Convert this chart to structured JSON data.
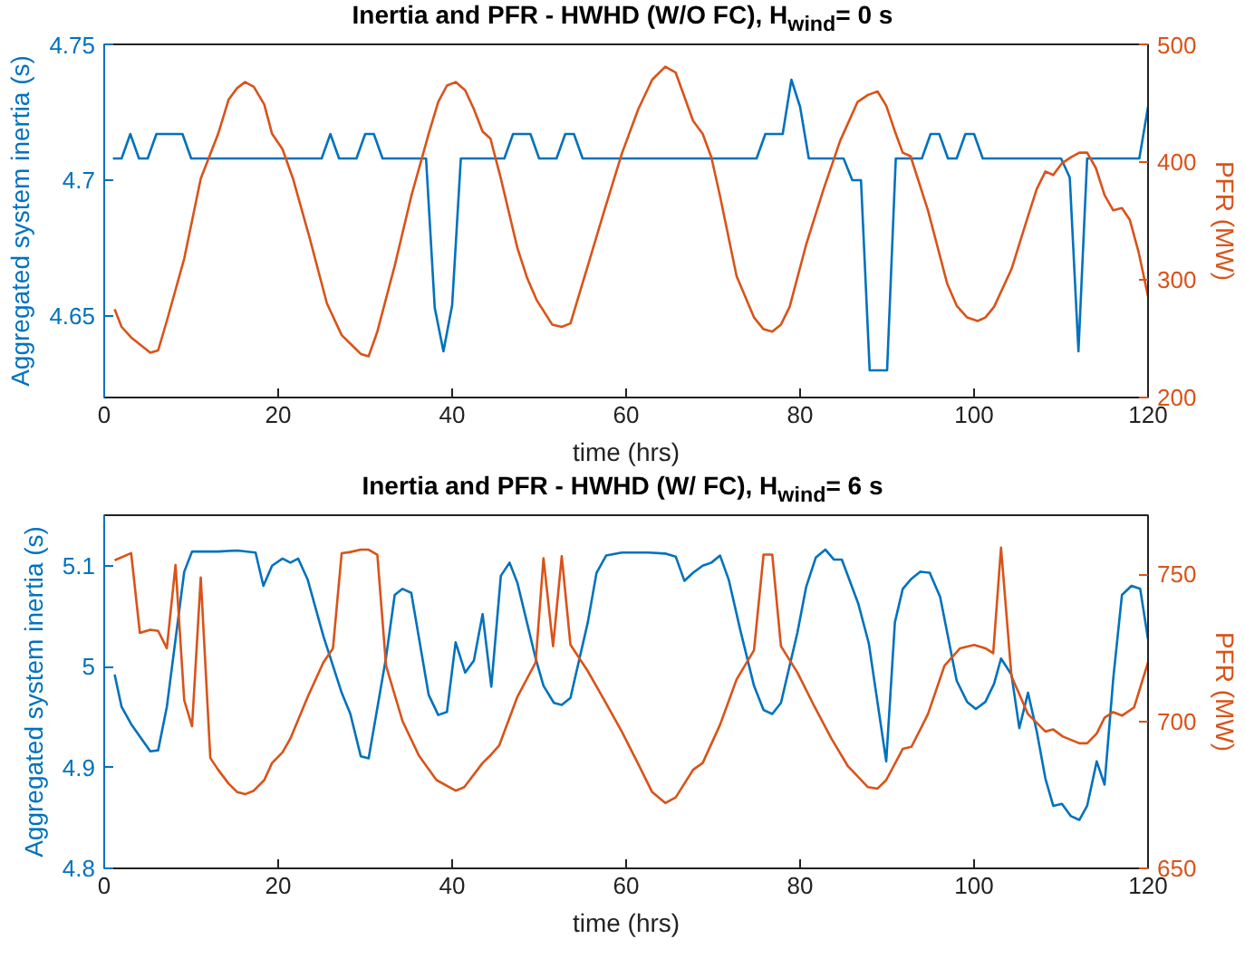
{
  "chart_data": [
    {
      "type": "line",
      "title": "Inertia and PFR - HWHD (W/O FC), H$_{wind}$= 0 s",
      "xlabel": "time (hrs)",
      "ylabel": "Aggregated system inertia (s)",
      "y2label": "PFR (MW)",
      "xlim": [
        0,
        120
      ],
      "xticks": [
        0,
        20,
        40,
        60,
        80,
        100,
        120
      ],
      "ylim": [
        4.62,
        4.75
      ],
      "yticks": [
        4.65,
        4.7,
        4.75
      ],
      "y2lim": [
        200,
        500
      ],
      "y2ticks": [
        200,
        300,
        400,
        500
      ],
      "grid": false,
      "series": [
        {
          "color": "#0072bd",
          "x": [
            1,
            2,
            3,
            4,
            5,
            6,
            7,
            8,
            9,
            10,
            25,
            26,
            27,
            29,
            30,
            31,
            32,
            37,
            38,
            39,
            40,
            41,
            46,
            47,
            49,
            50,
            52,
            53,
            54,
            55,
            75,
            76,
            78,
            79,
            80,
            81,
            85,
            86,
            87,
            88,
            90,
            91,
            94,
            95,
            96,
            97,
            98,
            99,
            100,
            101,
            110,
            111,
            112,
            113,
            119,
            120
          ],
          "values": [
            4.708,
            4.708,
            4.717,
            4.708,
            4.708,
            4.717,
            4.717,
            4.717,
            4.717,
            4.708,
            4.708,
            4.717,
            4.708,
            4.708,
            4.717,
            4.717,
            4.708,
            4.708,
            4.653,
            4.637,
            4.654,
            4.708,
            4.708,
            4.717,
            4.717,
            4.708,
            4.708,
            4.717,
            4.717,
            4.708,
            4.708,
            4.717,
            4.717,
            4.737,
            4.727,
            4.708,
            4.708,
            4.7,
            4.7,
            4.63,
            4.63,
            4.708,
            4.708,
            4.717,
            4.717,
            4.708,
            4.708,
            4.717,
            4.717,
            4.708,
            4.708,
            4.701,
            4.637,
            4.708,
            4.708,
            4.727
          ]
        },
        {
          "color": "#d95319",
          "axis": "y2",
          "x": [
            1.2,
            2,
            3.1,
            5.3,
            6.2,
            7.2,
            9.2,
            11.1,
            13.1,
            14.3,
            15.3,
            16.2,
            17.2,
            18.4,
            19.3,
            20.5,
            21.7,
            23.6,
            25.6,
            27.3,
            28.4,
            29.5,
            30.4,
            31.4,
            33.4,
            35.3,
            37.3,
            38.4,
            39.4,
            40.4,
            41.5,
            42.5,
            43.5,
            44.4,
            45.6,
            47.5,
            48.6,
            49.7,
            51.5,
            52.6,
            53.6,
            55.6,
            57.5,
            59.5,
            61.4,
            63,
            64.5,
            65.7,
            67.7,
            68.8,
            69.8,
            70.8,
            72.7,
            74.7,
            75.8,
            76.8,
            77.8,
            78.8,
            80.7,
            82.7,
            84.6,
            86.6,
            87.8,
            88.9,
            89.9,
            91,
            91.8,
            92.7,
            94.7,
            96.9,
            98,
            99.2,
            100.4,
            101.3,
            102.3,
            104.3,
            106.2,
            107.2,
            108.2,
            109.1,
            110.1,
            111.1,
            112.1,
            113,
            114,
            115,
            116,
            117,
            117.9,
            118.9,
            120
          ],
          "values": [
            275,
            260,
            251,
            238,
            240,
            265,
            318,
            386,
            424,
            453,
            463,
            468,
            464,
            449,
            424,
            411,
            386,
            336,
            280,
            253,
            245,
            237,
            235,
            256,
            312,
            371,
            424,
            451,
            465,
            468,
            461,
            445,
            426,
            420,
            386,
            327,
            302,
            283,
            262,
            260,
            263,
            312,
            359,
            407,
            445,
            470,
            481,
            476,
            435,
            424,
            404,
            371,
            303,
            268,
            258,
            256,
            262,
            277,
            330,
            377,
            418,
            451,
            457,
            460,
            448,
            424,
            408,
            405,
            359,
            297,
            278,
            268,
            265,
            268,
            277,
            309,
            354,
            377,
            392,
            389,
            399,
            404,
            408,
            408,
            395,
            372,
            359,
            361,
            351,
            324,
            286
          ]
        }
      ]
    },
    {
      "type": "line",
      "title": "Inertia and PFR - HWHD (W/ FC), H$_{wind}$= 6 s",
      "xlabel": "time (hrs)",
      "ylabel": "Aggregated system inertia (s)",
      "y2label": "PFR (MW)",
      "xlim": [
        0,
        120
      ],
      "xticks": [
        0,
        20,
        40,
        60,
        80,
        100,
        120
      ],
      "ylim": [
        4.8,
        5.15
      ],
      "yticks": [
        4.8,
        4.9,
        5,
        5.1
      ],
      "y2lim": [
        650,
        770
      ],
      "y2ticks": [
        650,
        700,
        750
      ],
      "grid": false,
      "series": [
        {
          "color": "#0072bd",
          "x": [
            1.2,
            2,
            3.1,
            5.3,
            6.2,
            7.2,
            9.2,
            10.1,
            13.1,
            15.3,
            17.4,
            18.3,
            19.3,
            20.5,
            21.4,
            22.3,
            23.4,
            25.2,
            27.3,
            28.3,
            29.5,
            30.4,
            32.4,
            33.4,
            34.3,
            35.3,
            37.3,
            38.4,
            39.4,
            40.4,
            41.5,
            42.5,
            43.5,
            44.5,
            45.6,
            46.6,
            47.5,
            49.6,
            50.5,
            51.7,
            52.6,
            53.6,
            55.6,
            56.6,
            57.7,
            59.5,
            62.6,
            64.5,
            65.7,
            66.7,
            67.7,
            68.8,
            69.8,
            70.8,
            71.8,
            73.1,
            74.7,
            75.8,
            76.8,
            77.8,
            79.7,
            80.7,
            81.8,
            82.9,
            83.9,
            84.8,
            86.7,
            87.9,
            89.9,
            90.9,
            91.8,
            92.8,
            93.8,
            94.9,
            96.1,
            98,
            99.2,
            100.2,
            101.3,
            102.3,
            103.1,
            104.3,
            105.2,
            106.2,
            107.2,
            108.2,
            109.1,
            110.1,
            111.1,
            112.1,
            113,
            114.1,
            115,
            116,
            117,
            118.1,
            119.1,
            120
          ],
          "values": [
            4.992,
            4.96,
            4.943,
            4.916,
            4.917,
            4.96,
            5.094,
            5.114,
            5.114,
            5.115,
            5.113,
            5.08,
            5.1,
            5.107,
            5.103,
            5.107,
            5.086,
            5.03,
            4.974,
            4.953,
            4.911,
            4.909,
            5.009,
            5.071,
            5.077,
            5.073,
            4.972,
            4.952,
            4.955,
            5.024,
            4.994,
            5.006,
            5.052,
            4.98,
            5.09,
            5.103,
            5.083,
            5.008,
            4.981,
            4.964,
            4.962,
            4.969,
            5.044,
            5.093,
            5.11,
            5.113,
            5.113,
            5.112,
            5.109,
            5.085,
            5.093,
            5.1,
            5.103,
            5.11,
            5.086,
            5.037,
            4.981,
            4.957,
            4.953,
            4.964,
            5.034,
            5.079,
            5.108,
            5.116,
            5.106,
            5.106,
            5.062,
            5.023,
            4.906,
            5.044,
            5.077,
            5.087,
            5.094,
            5.093,
            5.069,
            4.986,
            4.965,
            4.958,
            4.965,
            4.983,
            5.008,
            4.992,
            4.939,
            4.974,
            4.936,
            4.889,
            4.862,
            4.864,
            4.852,
            4.848,
            4.862,
            4.906,
            4.883,
            4.988,
            5.071,
            5.08,
            5.077,
            5.027
          ]
        },
        {
          "color": "#d95319",
          "axis": "y2",
          "x": [
            1.2,
            3.1,
            4.1,
            5.3,
            6.2,
            7.2,
            8.2,
            9.2,
            10.1,
            11.1,
            12.2,
            13.1,
            14.3,
            15.3,
            16.2,
            17.2,
            18.4,
            19.3,
            20.5,
            21.4,
            23.4,
            25.2,
            26.3,
            27.3,
            28.3,
            29.5,
            30.4,
            31.4,
            32.4,
            34.3,
            36.2,
            38.2,
            40.4,
            41.4,
            43.5,
            44.5,
            45.4,
            47.5,
            49.6,
            50.5,
            51.6,
            52.6,
            53.6,
            55.6,
            57.5,
            59.5,
            61.4,
            63,
            64.5,
            65.7,
            67.7,
            68.8,
            70.8,
            72.7,
            74.7,
            75.8,
            76.8,
            77.8,
            79.7,
            81.7,
            83.6,
            85.5,
            87.8,
            88.9,
            89.9,
            91.8,
            92.8,
            94.7,
            96.6,
            98.4,
            100,
            101.3,
            102.2,
            103.1,
            104.3,
            106.2,
            108.2,
            109.1,
            110.2,
            112.1,
            113,
            114.1,
            115,
            116,
            117,
            118.4,
            120
          ],
          "values": [
            754.7,
            757.1,
            730,
            731.1,
            730.7,
            724.8,
            753.1,
            707.1,
            698.3,
            748.8,
            687.5,
            683.5,
            678.8,
            675.9,
            675.2,
            676.4,
            680,
            685.8,
            689.4,
            694.1,
            708.3,
            720,
            724.8,
            757.1,
            757.5,
            758.3,
            758.3,
            756.6,
            718.9,
            700,
            688.2,
            680,
            676.4,
            677.6,
            685.8,
            688.7,
            691.7,
            708.3,
            720,
            755.4,
            725.5,
            756.1,
            726,
            717,
            707.1,
            696.5,
            685.4,
            675.9,
            672.2,
            674.1,
            683.5,
            685.8,
            698.8,
            714.2,
            724.1,
            756.6,
            756.6,
            725.5,
            716.5,
            704.7,
            694.1,
            684.7,
            677.6,
            677.1,
            680,
            690.6,
            691.3,
            702.4,
            718.9,
            724.8,
            725.9,
            724.8,
            723.1,
            759,
            715.3,
            702.4,
            696.5,
            697.2,
            694.8,
            692.5,
            692.5,
            695.8,
            701.2,
            703.1,
            701.9,
            704.7,
            720
          ]
        }
      ]
    }
  ]
}
